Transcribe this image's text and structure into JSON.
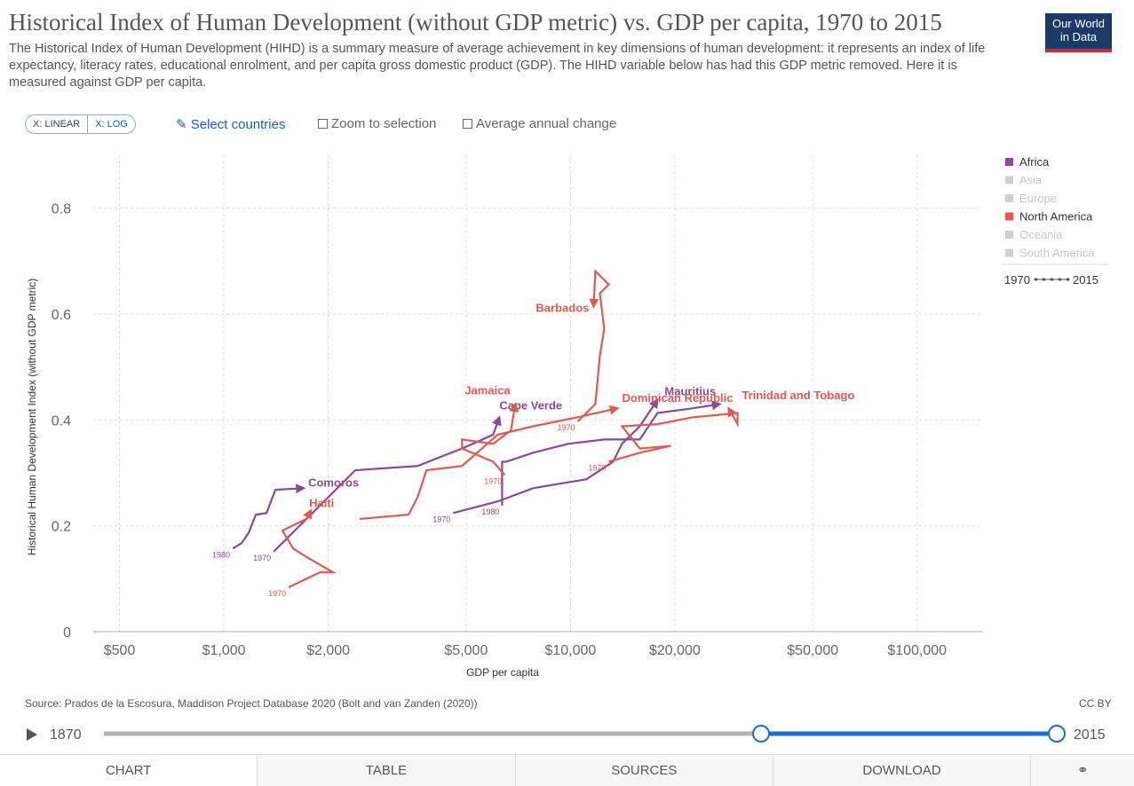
{
  "chart_data": {
    "type": "line",
    "title": "Historical Index of Human Development (without GDP metric) vs. GDP per capita, 1970 to 2015",
    "subtitle": "The Historical Index of Human Development (HIHD) is a summary measure of average achievement in key dimensions of human development: it represents an index of life expectancy, literacy rates, educational enrolment, and per capita gross domestic product (GDP). The HIHD variable below has had this GDP metric removed. Here it is measured against GDP per capita.",
    "x_label": "GDP per capita",
    "y_label": "Historical Human Development Index (without GDP metric)",
    "x_log": true,
    "grid": true,
    "xlim": [
      420,
      155000
    ],
    "xticks": [
      {
        "value": 500,
        "label": "$500"
      },
      {
        "value": 1000,
        "label": "$1,000"
      },
      {
        "value": 2000,
        "label": "$2,000"
      },
      {
        "value": 5000,
        "label": "$5,000"
      },
      {
        "value": 10000,
        "label": "$10,000"
      },
      {
        "value": 20000,
        "label": "$20,000"
      },
      {
        "value": 50000,
        "label": "$50,000"
      },
      {
        "value": 100000,
        "label": "$100,000"
      }
    ],
    "ylim": [
      0,
      0.9
    ],
    "yticks": [
      0,
      0.2,
      0.4,
      0.6,
      0.8
    ],
    "legend": {
      "position": "right",
      "entries": [
        {
          "name": "Africa",
          "color": "#8a4a96"
        },
        {
          "name": "Asia",
          "color": "#d0d0d0"
        },
        {
          "name": "Europe",
          "color": "#d0d0d0"
        },
        {
          "name": "North America",
          "color": "#e05a50"
        },
        {
          "name": "Oceania",
          "color": "#d0d0d0"
        },
        {
          "name": "South America",
          "color": "#d0d0d0"
        }
      ],
      "time_start": "1970",
      "time_end": "2015"
    },
    "series": [
      {
        "name": "Comoros",
        "color": "#8a4a96",
        "start_label": "1980",
        "x": [
          1061,
          1125,
          1180,
          1237,
          1328,
          1408,
          1701
        ],
        "values": [
          0.157,
          0.167,
          0.187,
          0.221,
          0.224,
          0.268,
          0.271
        ]
      },
      {
        "name": "Cape Verde",
        "color": "#8a4a96",
        "start_label": "1970",
        "x": [
          1392,
          2396,
          3622,
          4866,
          5984,
          6237
        ],
        "values": [
          0.151,
          0.305,
          0.313,
          0.346,
          0.372,
          0.405
        ]
      },
      {
        "name": "Mauritius",
        "color": "#8a4a96",
        "start_label": "1970",
        "x": [
          4591,
          6165,
          7803,
          11122,
          13275,
          14089,
          15850,
          17830
        ],
        "values": [
          0.224,
          0.246,
          0.271,
          0.288,
          0.321,
          0.355,
          0.388,
          0.438
        ]
      },
      {
        "color": "#8a4a96",
        "start_label": "1980",
        "x": [
          6350,
          6350,
          6531,
          7803,
          9886,
          12513,
          15850,
          17830,
          22580,
          26970
        ],
        "values": [
          0.238,
          0.321,
          0.321,
          0.338,
          0.355,
          0.363,
          0.363,
          0.413,
          0.422,
          0.43
        ]
      },
      {
        "name": "Haiti",
        "color": "#e05a50",
        "start_label": "1970",
        "x": [
          1539,
          1731,
          1892,
          2066,
          1731,
          1585,
          1476,
          1731,
          1783
        ],
        "values": [
          0.084,
          0.1,
          0.112,
          0.112,
          0.141,
          0.157,
          0.191,
          0.213,
          0.229
        ]
      },
      {
        "name": "Jamaica",
        "color": "#e05a50",
        "start_label": "1970",
        "x": [
          6457,
          5984,
          4866,
          4866,
          5984,
          6732,
          6934
        ],
        "values": [
          0.296,
          0.321,
          0.346,
          0.363,
          0.355,
          0.38,
          0.43
        ]
      },
      {
        "name": "Barbados",
        "color": "#e05a50",
        "start_label": "1970",
        "x": [
          10490,
          11800,
          12160,
          12513,
          12160,
          12890,
          11800,
          11660
        ],
        "values": [
          0.397,
          0.43,
          0.522,
          0.572,
          0.639,
          0.656,
          0.681,
          0.614
        ]
      },
      {
        "name": "Dominican Republic",
        "color": "#e05a50",
        "x": [
          2466,
          3413,
          3622,
          3843,
          4866,
          6165,
          7803,
          10490,
          13680
        ],
        "values": [
          0.213,
          0.221,
          0.254,
          0.305,
          0.313,
          0.372,
          0.388,
          0.405,
          0.422
        ]
      },
      {
        "name": "Trinidad and Tobago",
        "color": "#e05a50",
        "start_label": "1970",
        "x": [
          12890,
          15850,
          19500,
          15850,
          14089,
          17830,
          22580,
          30340,
          30340,
          28590
        ],
        "values": [
          0.321,
          0.338,
          0.351,
          0.346,
          0.388,
          0.392,
          0.405,
          0.413,
          0.392,
          0.422
        ]
      }
    ]
  },
  "logo": {
    "line1": "Our World",
    "line2": "in Data"
  },
  "controls": {
    "linear": "X: LINEAR",
    "log": "X: LOG",
    "select": "Select countries",
    "zoom": "Zoom to selection",
    "change": "Average annual change"
  },
  "footer": {
    "source": "Source: Prados de la Escosura, Maddison Project Database 2020 (Bolt and van Zanden (2020))",
    "license": "CC BY"
  },
  "timeline": {
    "start": "1870",
    "end": "2015"
  },
  "tabs": [
    "CHART",
    "TABLE",
    "SOURCES",
    "DOWNLOAD"
  ]
}
